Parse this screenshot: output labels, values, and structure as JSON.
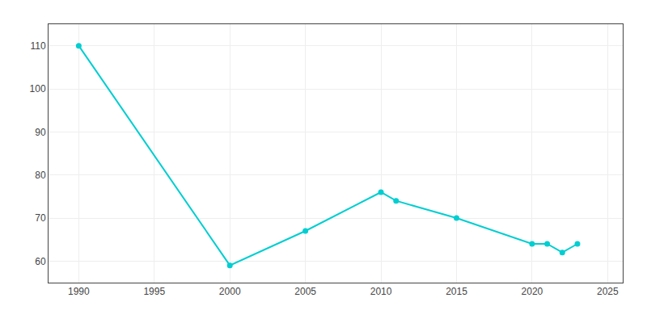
{
  "chart_data": {
    "type": "line",
    "x": [
      1990,
      2000,
      2005,
      2010,
      2011,
      2015,
      2020,
      2021,
      2022,
      2023
    ],
    "values": [
      110,
      59,
      67,
      76,
      74,
      70,
      64,
      64,
      62,
      64
    ],
    "color": "#00CED1",
    "marker": "circle",
    "line_style": "solid",
    "xlim": [
      1988,
      2026
    ],
    "ylim": [
      55,
      115
    ],
    "xticks": [
      1990,
      1995,
      2000,
      2005,
      2010,
      2015,
      2020,
      2025
    ],
    "yticks": [
      60,
      70,
      80,
      90,
      100,
      110
    ],
    "grid": true
  }
}
